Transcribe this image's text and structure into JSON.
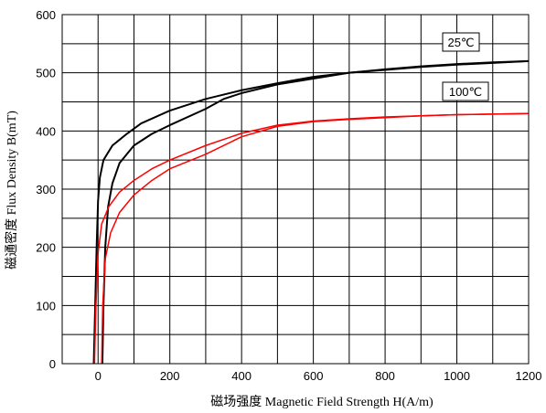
{
  "chart_data": {
    "type": "line",
    "xlabel": "磁场强度 Magnetic Field Strength H(A/m)",
    "ylabel": "磁通密度 Flux Density B(mT)",
    "xlim": [
      -100,
      1200
    ],
    "ylim": [
      0,
      600
    ],
    "xticks": [
      0,
      200,
      400,
      600,
      800,
      1000,
      1200
    ],
    "yticks": [
      0,
      100,
      200,
      300,
      400,
      500,
      600
    ],
    "grid": true,
    "colors": {
      "25C": "#000000",
      "100C": "#ff0000"
    },
    "series": [
      {
        "name": "25℃",
        "color": "#000000",
        "branches": [
          {
            "points": [
              [
                -12,
                0
              ],
              [
                -8,
                100
              ],
              [
                -4,
                200
              ],
              [
                0,
                280
              ],
              [
                5,
                320
              ],
              [
                15,
                350
              ],
              [
                40,
                375
              ],
              [
                80,
                395
              ],
              [
                120,
                413
              ],
              [
                200,
                435
              ],
              [
                300,
                455
              ],
              [
                400,
                470
              ],
              [
                500,
                482
              ],
              [
                600,
                493
              ],
              [
                700,
                500
              ],
              [
                800,
                506
              ],
              [
                900,
                511
              ],
              [
                1000,
                515
              ],
              [
                1100,
                518
              ],
              [
                1200,
                520
              ]
            ]
          },
          {
            "points": [
              [
                12,
                0
              ],
              [
                15,
                100
              ],
              [
                20,
                200
              ],
              [
                28,
                270
              ],
              [
                40,
                310
              ],
              [
                60,
                345
              ],
              [
                100,
                375
              ],
              [
                150,
                395
              ],
              [
                200,
                410
              ],
              [
                300,
                438
              ],
              [
                350,
                455
              ],
              [
                400,
                465
              ],
              [
                500,
                480
              ],
              [
                600,
                490
              ],
              [
                700,
                500
              ],
              [
                800,
                505
              ],
              [
                900,
                510
              ],
              [
                1000,
                514
              ],
              [
                1100,
                517
              ],
              [
                1200,
                520
              ]
            ]
          }
        ]
      },
      {
        "name": "100℃",
        "color": "#ff0000",
        "branches": [
          {
            "points": [
              [
                -10,
                0
              ],
              [
                -6,
                100
              ],
              [
                0,
                190
              ],
              [
                10,
                240
              ],
              [
                30,
                270
              ],
              [
                60,
                295
              ],
              [
                100,
                315
              ],
              [
                150,
                335
              ],
              [
                200,
                350
              ],
              [
                300,
                375
              ],
              [
                400,
                396
              ],
              [
                500,
                410
              ],
              [
                600,
                417
              ],
              [
                700,
                421
              ],
              [
                800,
                424
              ],
              [
                900,
                426
              ],
              [
                1000,
                428
              ],
              [
                1100,
                429
              ],
              [
                1200,
                430
              ]
            ]
          },
          {
            "points": [
              [
                10,
                0
              ],
              [
                13,
                100
              ],
              [
                20,
                180
              ],
              [
                35,
                225
              ],
              [
                60,
                260
              ],
              [
                100,
                290
              ],
              [
                150,
                315
              ],
              [
                200,
                335
              ],
              [
                300,
                360
              ],
              [
                400,
                390
              ],
              [
                500,
                408
              ],
              [
                600,
                416
              ],
              [
                700,
                420
              ],
              [
                800,
                423
              ],
              [
                900,
                426
              ],
              [
                1000,
                428
              ],
              [
                1100,
                429
              ],
              [
                1200,
                430
              ]
            ]
          }
        ]
      }
    ]
  }
}
